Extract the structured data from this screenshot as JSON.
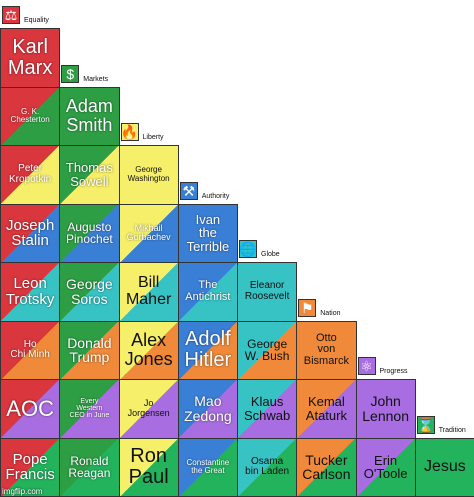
{
  "axes": [
    {
      "label": "Equality",
      "color": "#d9363e",
      "icon": "scales-icon",
      "glyph": "⚖"
    },
    {
      "label": "Markets",
      "color": "#2e9e45",
      "icon": "dollar-icon",
      "glyph": "$"
    },
    {
      "label": "Liberty",
      "color": "#f6ef6a",
      "icon": "torch-icon",
      "glyph": "🔥"
    },
    {
      "label": "Authority",
      "color": "#3a7fd6",
      "icon": "gavel-icon",
      "glyph": "⚒"
    },
    {
      "label": "Globe",
      "color": "#37c2c4",
      "icon": "globe-icon",
      "glyph": "🌐"
    },
    {
      "label": "Nation",
      "color": "#f08a3a",
      "icon": "flag-icon",
      "glyph": "⚑"
    },
    {
      "label": "Progress",
      "color": "#a86de0",
      "icon": "atom-icon",
      "glyph": "⚛"
    },
    {
      "label": "Tradition",
      "color": "#22b35c",
      "icon": "hourglass-icon",
      "glyph": "⌛"
    }
  ],
  "rows": [
    [
      {
        "name": "Karl\nMarx",
        "size": 20
      }
    ],
    [
      {
        "name": "G. K.\nChesterton",
        "size": 8
      },
      {
        "name": "Adam\nSmith",
        "size": 18
      }
    ],
    [
      {
        "name": "Peter\nKropotkin",
        "size": 10
      },
      {
        "name": "Thomas\nSowell",
        "size": 13
      },
      {
        "name": "George\nWashington",
        "size": 8
      }
    ],
    [
      {
        "name": "Joseph\nStalin",
        "size": 15
      },
      {
        "name": "Augusto\nPinochet",
        "size": 12
      },
      {
        "name": "Mikhail\nGorbachev",
        "size": 9
      },
      {
        "name": "Ivan\nthe\nTerrible",
        "size": 13
      }
    ],
    [
      {
        "name": "Leon\nTrotsky",
        "size": 15
      },
      {
        "name": "George\nSoros",
        "size": 14
      },
      {
        "name": "Bill\nMaher",
        "size": 16
      },
      {
        "name": "The\nAntichrist",
        "size": 11
      },
      {
        "name": "Eleanor\nRoosevelt",
        "size": 10
      }
    ],
    [
      {
        "name": "Ho\nChi Minh",
        "size": 10
      },
      {
        "name": "Donald\nTrump",
        "size": 14
      },
      {
        "name": "Alex\nJones",
        "size": 18
      },
      {
        "name": "Adolf\nHitler",
        "size": 20
      },
      {
        "name": "George\nW. Bush",
        "size": 12
      },
      {
        "name": "Otto\nvon\nBismarck",
        "size": 11
      }
    ],
    [
      {
        "name": "AOC",
        "size": 22
      },
      {
        "name": "Every\nWestern\nCEO in June",
        "size": 7
      },
      {
        "name": "Jo\nJorgensen",
        "size": 9
      },
      {
        "name": "Mao\nZedong",
        "size": 14
      },
      {
        "name": "Klaus\nSchwab",
        "size": 13
      },
      {
        "name": "Kemal\nAtaturk",
        "size": 13
      },
      {
        "name": "John\nLennon",
        "size": 14
      }
    ],
    [
      {
        "name": "Pope\nFrancis",
        "size": 15
      },
      {
        "name": "Ronald\nReagan",
        "size": 12
      },
      {
        "name": "Ron\nPaul",
        "size": 20
      },
      {
        "name": "Constantine\nthe Great",
        "size": 8
      },
      {
        "name": "Osama\nbin Laden",
        "size": 10
      },
      {
        "name": "Tucker\nCarlson",
        "size": 14
      },
      {
        "name": "Erin\nO'Toole",
        "size": 13
      },
      {
        "name": "Jesus",
        "size": 16
      }
    ]
  ],
  "watermark": "imgflip.com"
}
